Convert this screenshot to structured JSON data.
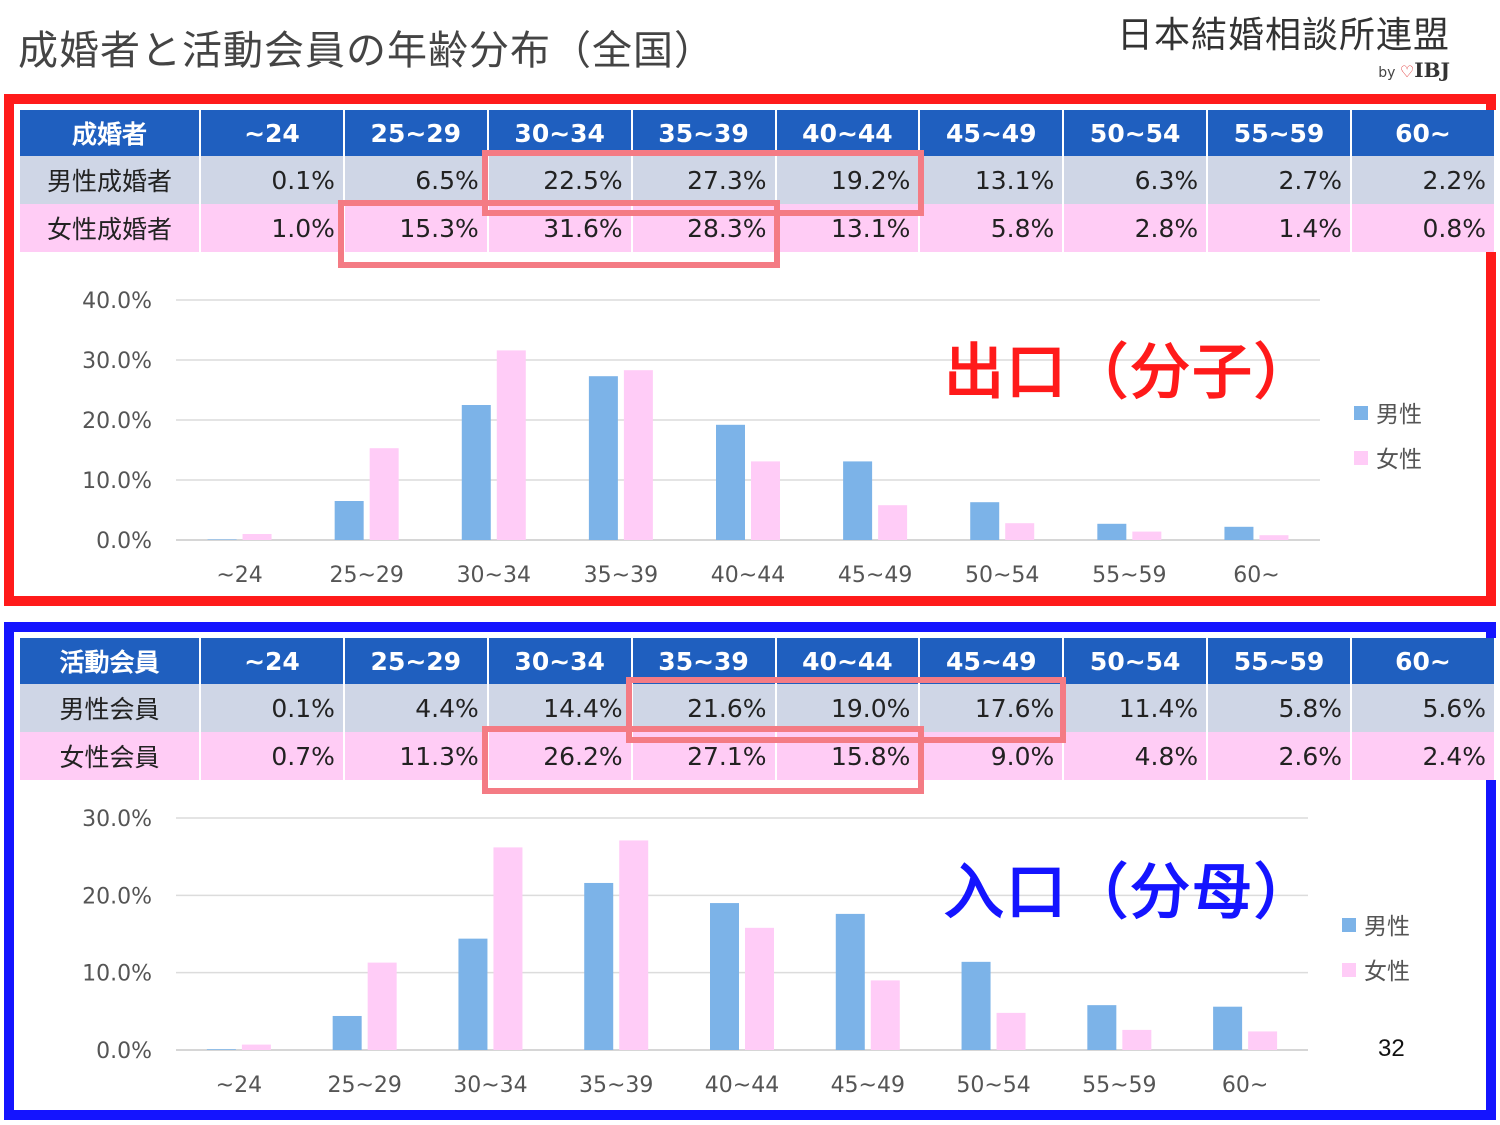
{
  "header": {
    "title": "成婚者と活動会員の年齢分布（全国）",
    "logo_main": "日本結婚相談所連盟",
    "logo_by": "by",
    "logo_heart": "♡",
    "logo_ibj": "IBJ"
  },
  "age_groups": [
    "~24",
    "25~29",
    "30~34",
    "35~39",
    "40~44",
    "45~49",
    "50~54",
    "55~59",
    "60~"
  ],
  "chart_age_labels": [
    "~24",
    "25~29",
    "30~34",
    "35~39",
    "40~44",
    "45~49",
    "50~54",
    "55~59",
    "60~"
  ],
  "married": {
    "header_label": "成婚者",
    "male_label": "男性成婚者",
    "female_label": "女性成婚者",
    "male_values": [
      "0.1%",
      "6.5%",
      "22.5%",
      "27.3%",
      "19.2%",
      "13.1%",
      "6.3%",
      "2.7%",
      "2.2%"
    ],
    "female_values": [
      "1.0%",
      "15.3%",
      "31.6%",
      "28.3%",
      "13.1%",
      "5.8%",
      "2.8%",
      "1.4%",
      "0.8%"
    ],
    "big_label": "出口（分子）"
  },
  "active": {
    "header_label": "活動会員",
    "male_label": "男性会員",
    "female_label": "女性会員",
    "male_values": [
      "0.1%",
      "4.4%",
      "14.4%",
      "21.6%",
      "19.0%",
      "17.6%",
      "11.4%",
      "5.8%",
      "5.6%"
    ],
    "female_values": [
      "0.7%",
      "11.3%",
      "26.2%",
      "27.1%",
      "15.8%",
      "9.0%",
      "4.8%",
      "2.6%",
      "2.4%"
    ],
    "big_label": "入口（分母）"
  },
  "legend": {
    "male": "男性",
    "female": "女性"
  },
  "colors": {
    "male": "#7cb3e8",
    "female": "#ffccf7",
    "header": "#1f5fbf",
    "exit": "#ff1a1a",
    "entry": "#1414ff",
    "highlight": "#f47b84"
  },
  "page_number": "32",
  "chart_data": [
    {
      "type": "bar",
      "categories": [
        "~24",
        "25~29",
        "30~34",
        "35~39",
        "40~44",
        "45~49",
        "50~54",
        "55~59",
        "60~"
      ],
      "series": [
        {
          "name": "男性",
          "values": [
            0.1,
            6.5,
            22.5,
            27.3,
            19.2,
            13.1,
            6.3,
            2.7,
            2.2
          ]
        },
        {
          "name": "女性",
          "values": [
            1.0,
            15.3,
            31.6,
            28.3,
            13.1,
            5.8,
            2.8,
            1.4,
            0.8
          ]
        }
      ],
      "ylim": [
        0,
        40
      ],
      "yticks": [
        "0.0%",
        "10.0%",
        "20.0%",
        "30.0%",
        "40.0%"
      ],
      "grid": true,
      "legend_position": "right"
    },
    {
      "type": "bar",
      "categories": [
        "~24",
        "25~29",
        "30~34",
        "35~39",
        "40~44",
        "45~49",
        "50~54",
        "55~59",
        "60~"
      ],
      "series": [
        {
          "name": "男性",
          "values": [
            0.1,
            4.4,
            14.4,
            21.6,
            19.0,
            17.6,
            11.4,
            5.8,
            5.6
          ]
        },
        {
          "name": "女性",
          "values": [
            0.7,
            11.3,
            26.2,
            27.1,
            15.8,
            9.0,
            4.8,
            2.6,
            2.4
          ]
        }
      ],
      "ylim": [
        0,
        30
      ],
      "yticks": [
        "0.0%",
        "10.0%",
        "20.0%",
        "30.0%"
      ],
      "grid": true,
      "legend_position": "right"
    }
  ]
}
